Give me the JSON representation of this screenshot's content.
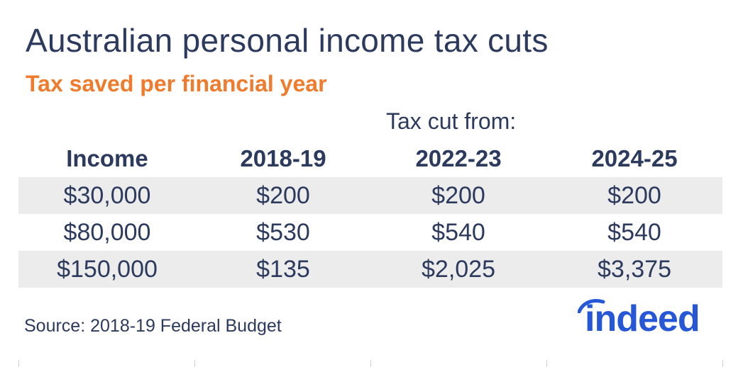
{
  "title": "Australian personal income tax cuts",
  "subtitle": "Tax saved per financial year",
  "group_label": "Tax cut from:",
  "source": "Source: 2018-19 Federal Budget",
  "logo_text": "indeed",
  "colors": {
    "title": "#2c3a5e",
    "subtitle": "#f07b2c",
    "row_shade": "#ececec",
    "logo": "#2557d6"
  },
  "chart_data": {
    "type": "table",
    "columns": [
      "Income",
      "2018-19",
      "2022-23",
      "2024-25"
    ],
    "rows": [
      [
        "$30,000",
        "$200",
        "$200",
        "$200"
      ],
      [
        "$80,000",
        "$530",
        "$540",
        "$540"
      ],
      [
        "$150,000",
        "$135",
        "$2,025",
        "$3,375"
      ]
    ]
  }
}
